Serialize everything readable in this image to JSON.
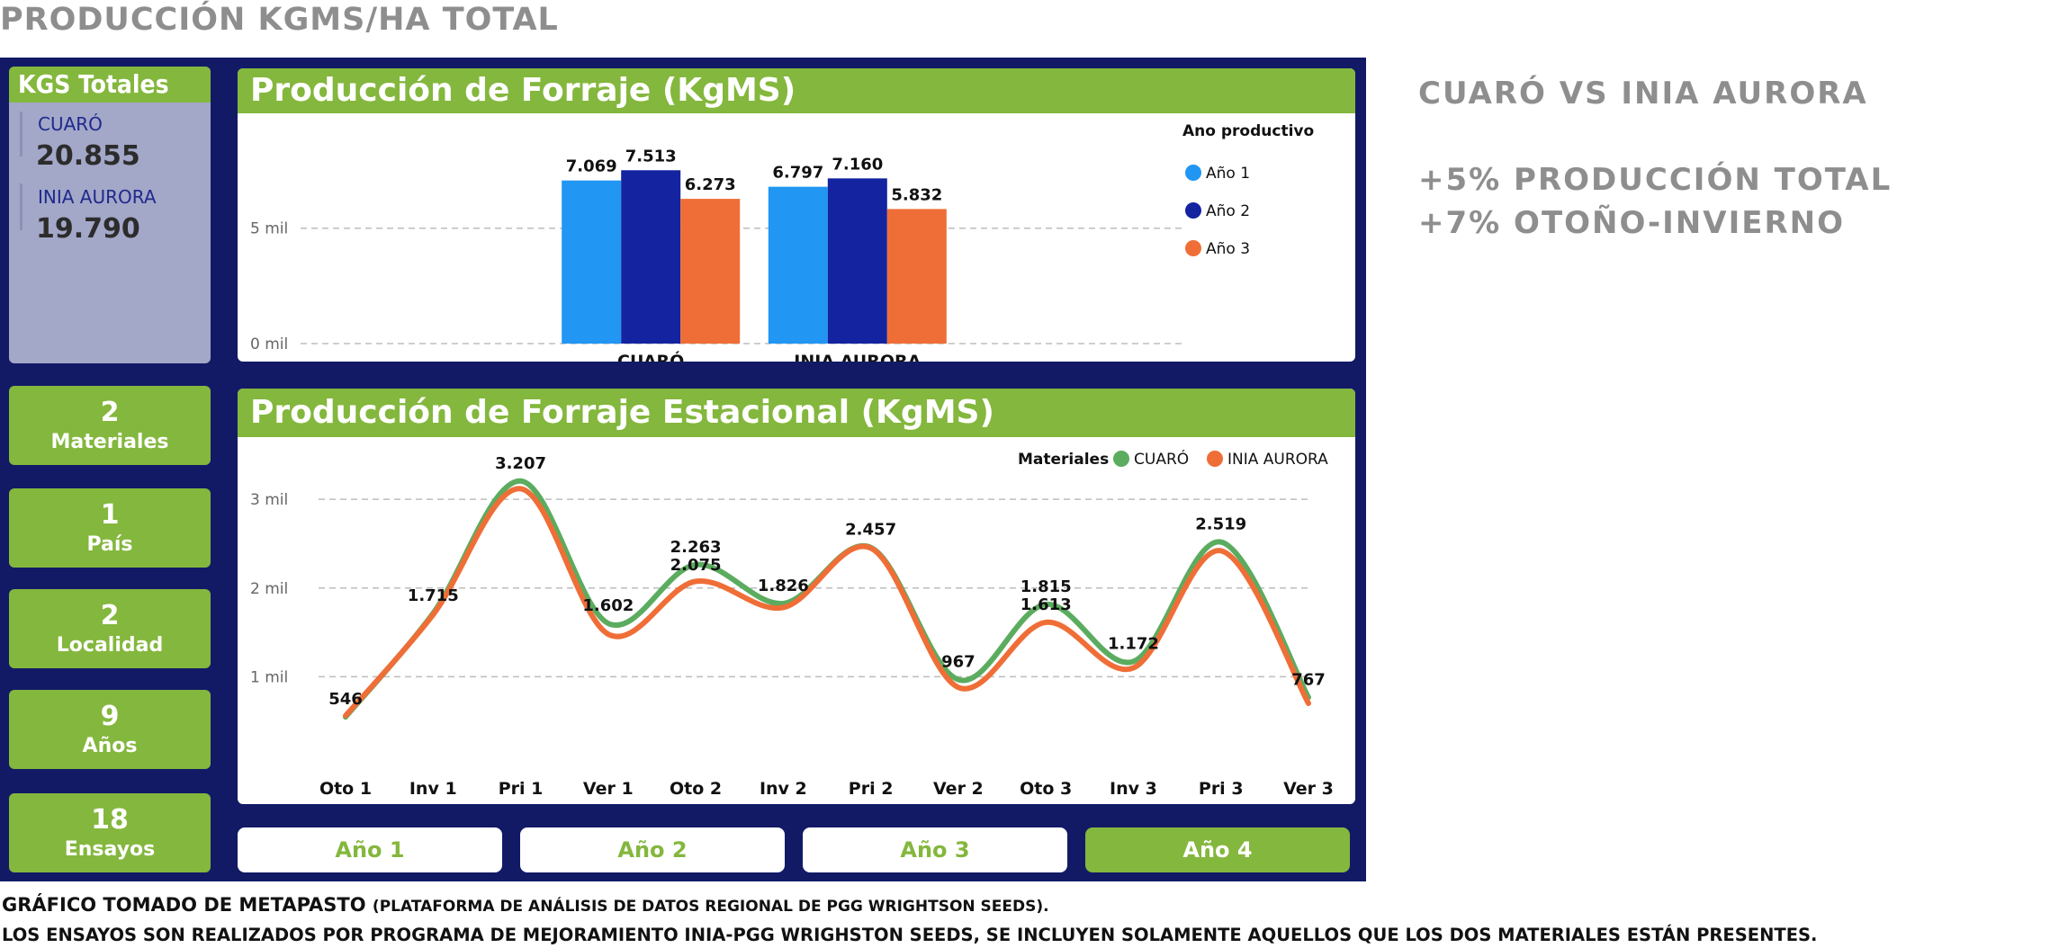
{
  "page_title": "PRODUCCIÓN KGMS/HA TOTAL",
  "kgs": {
    "title": "KGS Totales",
    "items": [
      {
        "label": "CUARÓ",
        "value": "20.855"
      },
      {
        "label": "INIA AURORA",
        "value": "19.790"
      }
    ]
  },
  "stats": [
    {
      "value": "2",
      "label": "Materiales"
    },
    {
      "value": "1",
      "label": "País"
    },
    {
      "value": "2",
      "label": "Localidad"
    },
    {
      "value": "9",
      "label": "Años"
    },
    {
      "value": "18",
      "label": "Ensayos"
    }
  ],
  "year_buttons": [
    {
      "label": "Año 1",
      "active": false
    },
    {
      "label": "Año 2",
      "active": false
    },
    {
      "label": "Año 3",
      "active": false
    },
    {
      "label": "Año 4",
      "active": true
    }
  ],
  "side_text": {
    "heading": "CUARÓ VS INIA AURORA",
    "line1": "+5% PRODUCCIÓN TOTAL",
    "line2": "+7% OTOÑO-INVIERNO"
  },
  "footer": {
    "line1_main": "GRÁFICO TOMADO DE METAPASTO",
    "line1_small": "(PLATAFORMA DE ANÁLISIS DE DATOS REGIONAL DE PGG WRIGHTSON SEEDS).",
    "line2": "LOS ENSAYOS SON REALIZADOS POR PROGRAMA DE MEJORAMIENTO INIA-PGG WRIGHSTON SEEDS,  SE INCLUYEN SOLAMENTE AQUELLOS QUE LOS DOS MATERIALES ESTÁN PRESENTES."
  },
  "chart_data": [
    {
      "type": "bar",
      "title": "Producción de Forraje (KgMS)",
      "categories": [
        "CUARÓ",
        "INIA AURORA"
      ],
      "legend_title": "Ano productivo",
      "legend_position": "top-right",
      "series": [
        {
          "name": "Año 1",
          "color": "#2196f3",
          "values": [
            7069,
            6797
          ],
          "labels": [
            "7.069",
            "6.797"
          ]
        },
        {
          "name": "Año 2",
          "color": "#1423a0",
          "values": [
            7513,
            7160
          ],
          "labels": [
            "7.513",
            "7.160"
          ]
        },
        {
          "name": "Año 3",
          "color": "#ef6e37",
          "values": [
            6273,
            5832
          ],
          "labels": [
            "6.273",
            "5.832"
          ]
        }
      ],
      "yticks": [
        {
          "value": 0,
          "label": "0 mil"
        },
        {
          "value": 5000,
          "label": "5 mil"
        }
      ],
      "ylim": [
        0,
        9200
      ],
      "grid": true
    },
    {
      "type": "line",
      "title": "Producción de Forraje Estacional (KgMS)",
      "x": [
        "Oto 1",
        "Inv 1",
        "Pri 1",
        "Ver 1",
        "Oto 2",
        "Inv 2",
        "Pri 2",
        "Ver 2",
        "Oto 3",
        "Inv 3",
        "Pri 3",
        "Ver 3"
      ],
      "legend_title": "Materiales",
      "legend_position": "top-right",
      "series": [
        {
          "name": "CUARÓ",
          "color": "#5bac5f",
          "values": [
            546,
            1715,
            3207,
            1602,
            2263,
            1826,
            2457,
            967,
            1815,
            1172,
            2519,
            767
          ]
        },
        {
          "name": "INIA AURORA",
          "color": "#ef6e37",
          "values": [
            560,
            1700,
            3120,
            1480,
            2075,
            1780,
            2450,
            880,
            1613,
            1100,
            2420,
            700
          ]
        }
      ],
      "data_labels": [
        {
          "index": 0,
          "text": "546"
        },
        {
          "index": 1,
          "text": "1.715"
        },
        {
          "index": 2,
          "text": "3.207"
        },
        {
          "index": 3,
          "text": "1.602"
        },
        {
          "index": 4,
          "text": "2.263"
        },
        {
          "index": 4,
          "text": "2.075"
        },
        {
          "index": 5,
          "text": "1.826"
        },
        {
          "index": 6,
          "text": "2.457"
        },
        {
          "index": 7,
          "text": "967"
        },
        {
          "index": 8,
          "text": "1.815"
        },
        {
          "index": 8,
          "text": "1.613"
        },
        {
          "index": 9,
          "text": "1.172"
        },
        {
          "index": 10,
          "text": "2.519"
        },
        {
          "index": 11,
          "text": "767"
        }
      ],
      "yticks": [
        {
          "value": 1000,
          "label": "1 mil"
        },
        {
          "value": 2000,
          "label": "2 mil"
        },
        {
          "value": 3000,
          "label": "3 mil"
        }
      ],
      "ylim": [
        0,
        3600
      ],
      "grid": true
    }
  ]
}
